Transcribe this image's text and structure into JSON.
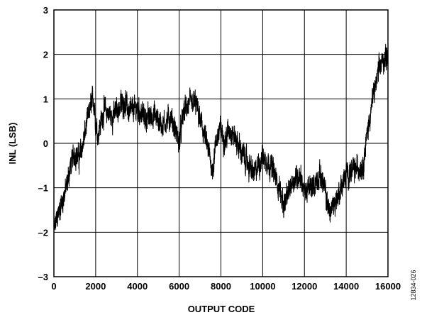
{
  "chart_data": {
    "type": "line",
    "xlabel": "OUTPUT CODE",
    "ylabel": "INL (LSB)",
    "xlim": [
      0,
      16000
    ],
    "ylim": [
      -3,
      3
    ],
    "x_ticks": [
      "0",
      "2000",
      "4000",
      "6000",
      "8000",
      "10000",
      "12000",
      "14000",
      "16000"
    ],
    "y_ticks": [
      "3",
      "2",
      "1",
      "0",
      "–1",
      "–2",
      "–3"
    ],
    "y_tick_values": [
      3,
      2,
      1,
      0,
      -1,
      -2,
      -3
    ],
    "x_tick_values": [
      0,
      2000,
      4000,
      6000,
      8000,
      10000,
      12000,
      14000,
      16000
    ],
    "grid": true,
    "figure_id": "12834-026",
    "series": [
      {
        "x": [
          0,
          200,
          400,
          600,
          800,
          1000,
          1200,
          1400,
          1600,
          1800,
          1900,
          2000,
          2100,
          2400,
          2800,
          3200,
          3400,
          3600,
          4000,
          4400,
          4800,
          5200,
          5600,
          5800,
          6000,
          6200,
          6400,
          6800,
          7000,
          7200,
          7400,
          7600,
          7800,
          8000,
          8200,
          8400,
          8800,
          9200,
          9600,
          10000,
          10400,
          10800,
          11000,
          11200,
          11400,
          11800,
          12000,
          12400,
          12800,
          13200,
          13600,
          14000,
          14400,
          14800,
          15000,
          15200,
          15400,
          15600,
          15800,
          16000
        ],
        "y": [
          -2.0,
          -1.6,
          -1.3,
          -1.0,
          -0.5,
          -0.2,
          -0.35,
          0.0,
          0.5,
          0.9,
          1.0,
          0.5,
          0.2,
          0.75,
          0.6,
          0.85,
          0.95,
          0.7,
          0.8,
          0.55,
          0.65,
          0.4,
          0.6,
          0.3,
          0.0,
          0.7,
          0.85,
          0.9,
          0.5,
          0.2,
          -0.2,
          -0.6,
          0.15,
          0.3,
          0.05,
          0.35,
          0.0,
          -0.4,
          -0.7,
          -0.3,
          -0.5,
          -1.0,
          -1.4,
          -1.2,
          -0.85,
          -0.7,
          -1.1,
          -0.95,
          -0.7,
          -1.55,
          -1.2,
          -0.7,
          -0.6,
          -0.5,
          0.2,
          0.8,
          1.3,
          1.7,
          1.9,
          2.0
        ]
      }
    ]
  }
}
